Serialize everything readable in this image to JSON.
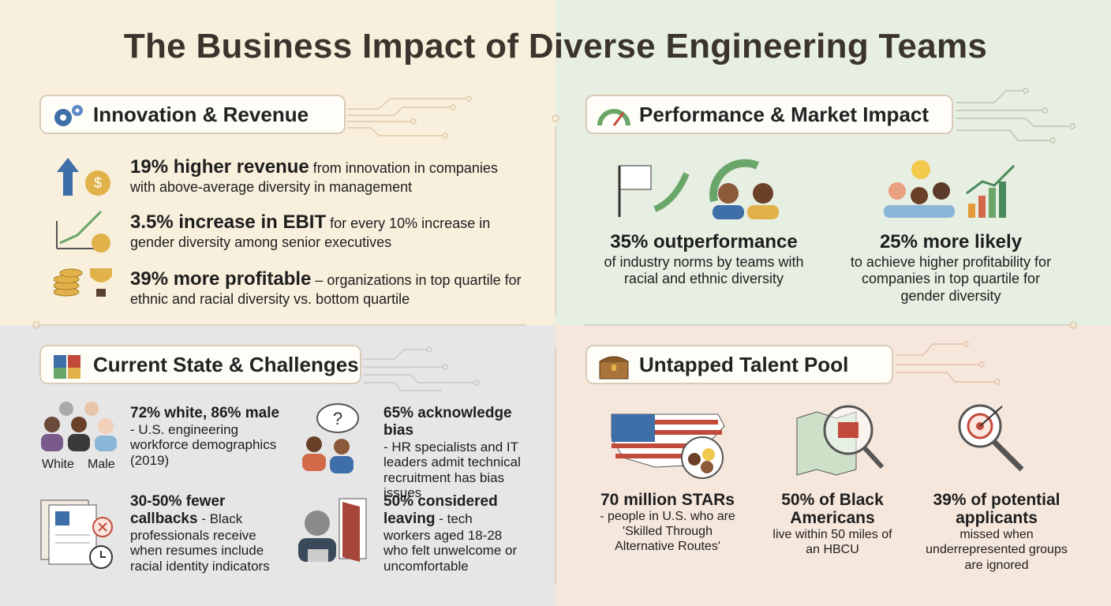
{
  "title": "The Business Impact of Diverse Engineering Teams",
  "sections": [
    {
      "heading": "Innovation & Revenue",
      "items": [
        {
          "highlight": "19% higher revenue",
          "text": "from innovation in companies with above-average diversity in management"
        },
        {
          "highlight": "3.5% increase in EBIT",
          "text": "for every 10% increase in gender diversity among senior executives"
        },
        {
          "highlight": "39% more profitable",
          "text": "– organizations in top quartile for ethnic and racial diversity vs. bottom quartile"
        }
      ]
    },
    {
      "heading": "Performance & Market Impact",
      "items": [
        {
          "highlight": "35% outperformance",
          "text": "of industry norms by teams with racial and ethnic diversity"
        },
        {
          "highlight": "25% more likely",
          "text": "to achieve higher profitability for companies in top quartile for gender diversity"
        }
      ]
    },
    {
      "heading": "Current State & Challenges",
      "icon_labels": [
        "White",
        "Male"
      ],
      "items": [
        {
          "highlight": "72% white, 86% male",
          "text": "- U.S. engineering workforce demographics (2019)"
        },
        {
          "highlight": "65% acknowledge bias",
          "text": "- HR specialists and IT leaders admit technical recruitment has bias issues"
        },
        {
          "highlight": "30-50% fewer callbacks",
          "text": "- Black professionals receive when resumes include racial identity indicators"
        },
        {
          "highlight": "50% considered leaving",
          "text": "- tech workers aged 18-28 who felt unwelcome or uncomfortable"
        }
      ]
    },
    {
      "heading": "Untapped Talent Pool",
      "items": [
        {
          "highlight": "70 million STARs",
          "text": "- people in U.S. who are 'Skilled Through Alternative Routes'"
        },
        {
          "highlight": "50% of Black Americans",
          "text": "live within 50 miles of an HBCU"
        },
        {
          "highlight": "39% of potential applicants",
          "text": "missed when underrepresented groups are ignored"
        }
      ]
    }
  ]
}
